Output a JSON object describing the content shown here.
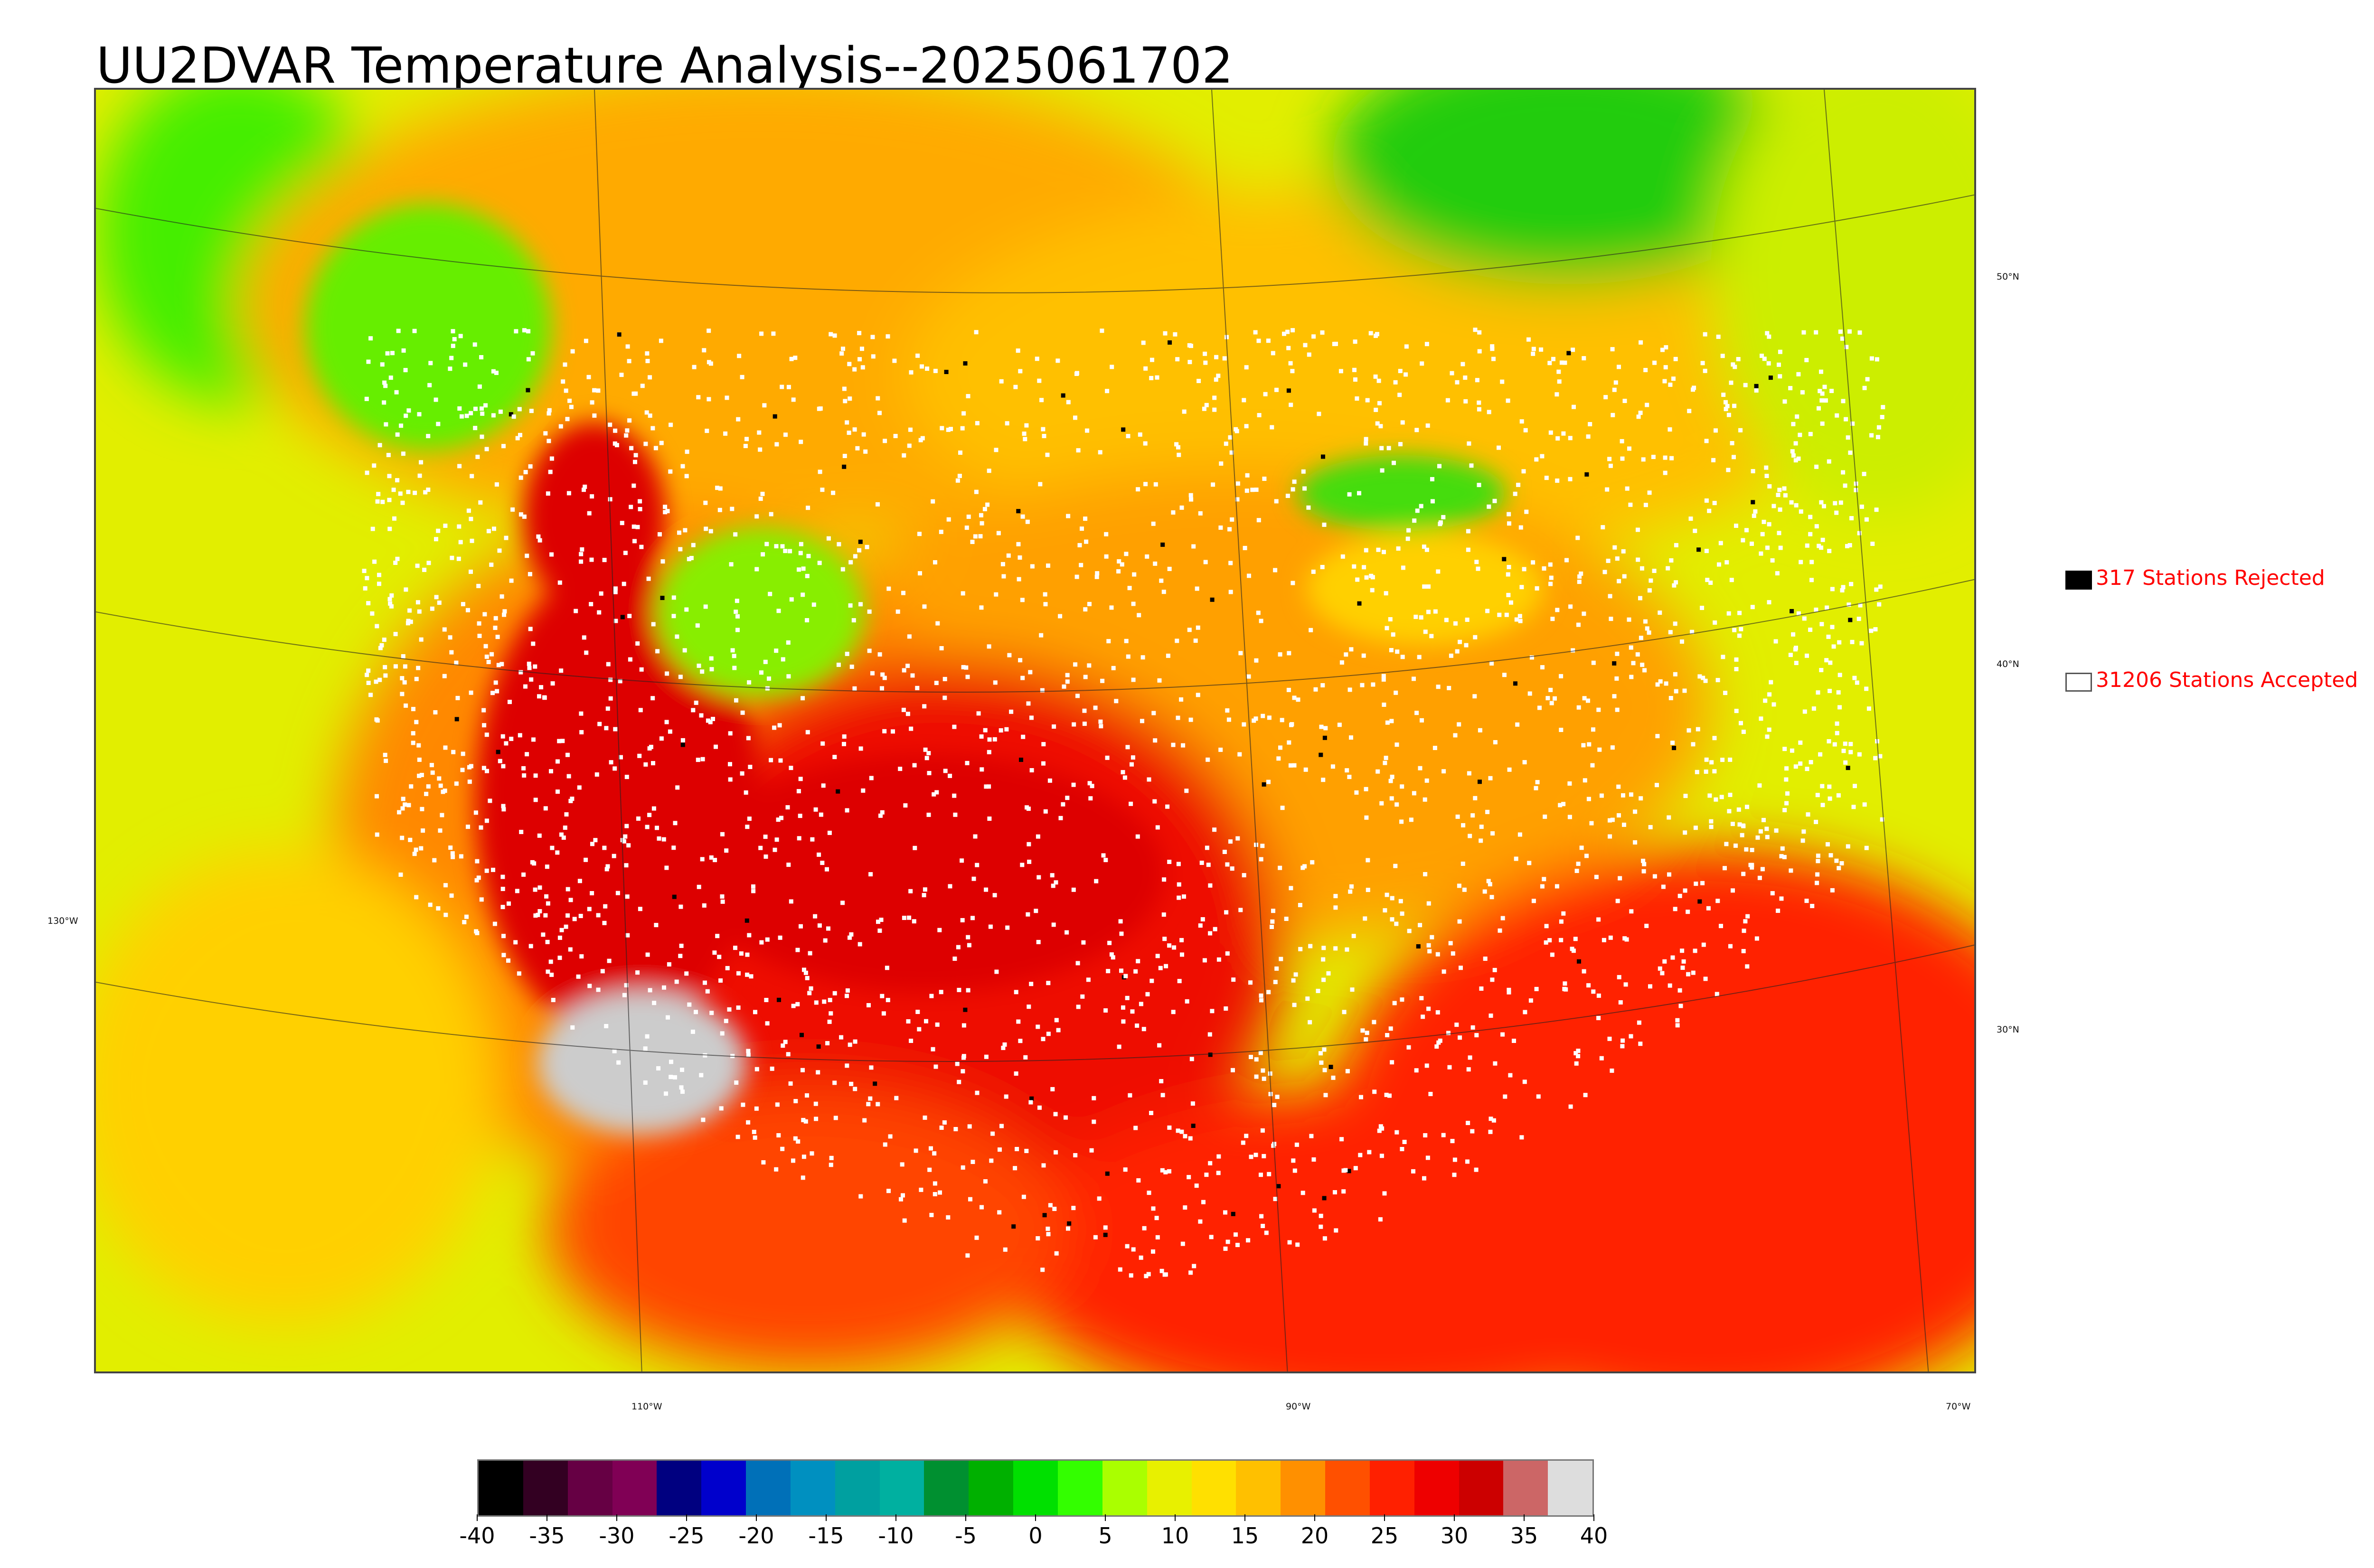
{
  "title": "UU2DVAR Temperature Analysis--2025061702",
  "map": {
    "lat_labels": [
      "50°N",
      "40°N",
      "30°N",
      "130°W"
    ],
    "lon_labels": [
      "110°W",
      "90°W",
      "70°W"
    ],
    "colors": {
      "very_hot": "#dd0000",
      "hot": "#ff2200",
      "warm": "#ff8800",
      "mild": "#ffc400",
      "cool": "#e0f000",
      "green": "#33dd00",
      "dark_green": "#11aa11",
      "station_accepted": "#ffffff",
      "station_rejected": "#000000",
      "terrain_gray": "#cccccc"
    }
  },
  "legend": {
    "rejected": {
      "label": "317 Stations Rejected",
      "color": "#000000"
    },
    "accepted": {
      "label": "31206 Stations Accepted",
      "color": "#ffffff"
    },
    "text_color": "#ff0000"
  },
  "colorbar": {
    "min": -40,
    "max": 40,
    "tick_labels": [
      "-40",
      "-35",
      "-30",
      "-25",
      "-20",
      "-15",
      "-10",
      "-5",
      "0",
      "5",
      "10",
      "15",
      "20",
      "25",
      "30",
      "35",
      "40"
    ],
    "colors": [
      "#000000",
      "#330022",
      "#660044",
      "#800055",
      "#000080",
      "#0000cc",
      "#0070b8",
      "#0090c0",
      "#00a0a0",
      "#00b0a0",
      "#009030",
      "#00b000",
      "#00e000",
      "#33ff00",
      "#aaff00",
      "#e8f000",
      "#ffe000",
      "#ffc000",
      "#ff9000",
      "#ff5000",
      "#ff2000",
      "#ee0000",
      "#cc0000",
      "#cc6666",
      "#dddddd"
    ]
  }
}
